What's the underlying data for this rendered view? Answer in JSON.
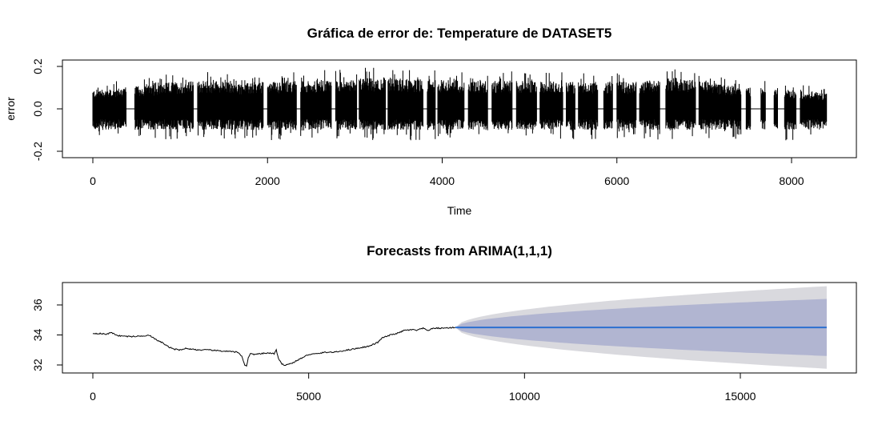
{
  "chart_data": [
    {
      "type": "line",
      "title": "Gráfica de error de: Temperature  de  DATASET5",
      "xlabel": "Time",
      "ylabel": "error",
      "xlim": [
        0,
        8400
      ],
      "ylim": [
        -0.2,
        0.2
      ],
      "xticks": [
        0,
        2000,
        4000,
        6000,
        8000
      ],
      "yticks": [
        -0.2,
        0.0,
        0.2
      ],
      "ytick_labels": [
        "-0.2",
        "0.0",
        "0.2"
      ],
      "grid": false,
      "series": [
        {
          "description_hidden": true,
          "x": [
            0,
            8400
          ],
          "baseline": 0.0,
          "color": "#000000",
          "active_segments": [
            [
              0,
              380
            ],
            [
              480,
              1150
            ],
            [
              1200,
              1950
            ],
            [
              2000,
              2330
            ],
            [
              2380,
              2730
            ],
            [
              2780,
              3020
            ],
            [
              3050,
              3350
            ],
            [
              3380,
              3780
            ],
            [
              3830,
              3920
            ],
            [
              3950,
              4250
            ],
            [
              4300,
              4520
            ],
            [
              4570,
              4800
            ],
            [
              4850,
              5080
            ],
            [
              5120,
              5380
            ],
            [
              5420,
              5520
            ],
            [
              5560,
              5780
            ],
            [
              5850,
              5950
            ],
            [
              6000,
              6220
            ],
            [
              6260,
              6490
            ],
            [
              6560,
              6900
            ],
            [
              6940,
              7420
            ],
            [
              7480,
              7530
            ],
            [
              7650,
              7700
            ],
            [
              7800,
              7840
            ],
            [
              7920,
              8050
            ],
            [
              8100,
              8400
            ]
          ],
          "amplitude_envelope": [
            [
              0,
              0.12
            ],
            [
              700,
              0.15
            ],
            [
              900,
              0.17
            ],
            [
              1400,
              0.18
            ],
            [
              1650,
              0.16
            ],
            [
              3350,
              0.2
            ],
            [
              3600,
              0.19
            ],
            [
              4200,
              0.18
            ],
            [
              6200,
              0.17
            ],
            [
              6650,
              0.2
            ],
            [
              7300,
              0.15
            ],
            [
              8400,
              0.1
            ]
          ]
        }
      ]
    },
    {
      "type": "area",
      "title": "Forecasts from ARIMA(1,1,1)",
      "xlabel": "",
      "ylabel": "",
      "xlim": [
        0,
        17000
      ],
      "ylim": [
        31.7,
        37.3
      ],
      "xticks": [
        0,
        5000,
        10000,
        15000
      ],
      "yticks": [
        32,
        34,
        36
      ],
      "grid": false,
      "forecast_start": 8400,
      "forecast_end": 17000,
      "forecast_mean": 34.5,
      "colors": {
        "observed": "#000000",
        "forecast_line": "#2b6fd0",
        "pi95": "#d9d9de",
        "pi80": "#b1b5d1"
      },
      "observed": {
        "x": [
          0,
          150,
          300,
          420,
          600,
          800,
          1000,
          1200,
          1300,
          1450,
          1600,
          1750,
          1900,
          2000,
          2150,
          2300,
          2450,
          2650,
          2900,
          3150,
          3350,
          3450,
          3520,
          3560,
          3600,
          3650,
          3750,
          3900,
          4050,
          4200,
          4250,
          4300,
          4380,
          4450,
          4600,
          4800,
          5000,
          5200,
          5400,
          5600,
          5800,
          6100,
          6400,
          6600,
          6700,
          6900,
          7100,
          7200,
          7400,
          7500,
          7650,
          7750,
          7900,
          8100,
          8400
        ],
        "y": [
          34.1,
          34.1,
          34.05,
          34.15,
          33.95,
          33.9,
          33.9,
          33.95,
          34.0,
          33.7,
          33.5,
          33.2,
          33.05,
          33.0,
          33.1,
          33.05,
          33.0,
          33.0,
          32.95,
          32.9,
          32.85,
          32.6,
          32.0,
          31.9,
          32.5,
          32.75,
          32.7,
          32.75,
          32.8,
          32.75,
          33.0,
          32.4,
          32.05,
          32.0,
          32.1,
          32.4,
          32.7,
          32.75,
          32.85,
          32.85,
          32.95,
          33.1,
          33.25,
          33.5,
          33.8,
          34.0,
          34.15,
          34.3,
          34.35,
          34.3,
          34.45,
          34.3,
          34.45,
          34.45,
          34.5
        ]
      },
      "pi80_half_width_end": 1.9,
      "pi95_half_width_end": 2.75
    }
  ]
}
